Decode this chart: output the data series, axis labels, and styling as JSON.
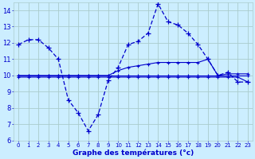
{
  "title": "Graphe des températures (°c)",
  "bg_color": "#cceeff",
  "grid_color": "#aacccc",
  "line_color": "#0000cc",
  "hours": [
    0,
    1,
    2,
    3,
    4,
    5,
    6,
    7,
    8,
    9,
    10,
    11,
    12,
    13,
    14,
    15,
    16,
    17,
    18,
    19,
    20,
    21,
    22,
    23
  ],
  "temp_curve": [
    11.9,
    12.2,
    12.2,
    11.7,
    11.0,
    8.5,
    7.7,
    6.6,
    7.6,
    9.7,
    10.5,
    11.9,
    12.1,
    12.6,
    14.4,
    13.3,
    13.1,
    12.6,
    11.9,
    11.0,
    10.0,
    10.2,
    9.6,
    9.6
  ],
  "hline_top": [
    10.0,
    10.0,
    10.0,
    10.0,
    10.0,
    10.0,
    10.0,
    10.0,
    10.0,
    10.0,
    10.3,
    10.5,
    10.6,
    10.7,
    10.8,
    10.8,
    10.8,
    10.8,
    10.8,
    11.0,
    10.0,
    10.1,
    10.1,
    10.1
  ],
  "hline_mid": [
    10.0,
    10.0,
    10.0,
    10.0,
    10.0,
    10.0,
    10.0,
    10.0,
    10.0,
    10.0,
    10.0,
    10.0,
    10.0,
    10.0,
    10.0,
    10.0,
    10.0,
    10.0,
    10.0,
    10.0,
    10.0,
    10.0,
    10.0,
    10.0
  ],
  "hline_bot": [
    9.9,
    9.9,
    9.9,
    9.9,
    9.9,
    9.9,
    9.9,
    9.9,
    9.9,
    9.9,
    9.9,
    9.9,
    9.9,
    9.9,
    9.9,
    9.9,
    9.9,
    9.9,
    9.9,
    9.9,
    9.9,
    9.9,
    9.9,
    9.6
  ],
  "ylim": [
    6,
    14.5
  ],
  "yticks": [
    6,
    7,
    8,
    9,
    10,
    11,
    12,
    13,
    14
  ]
}
